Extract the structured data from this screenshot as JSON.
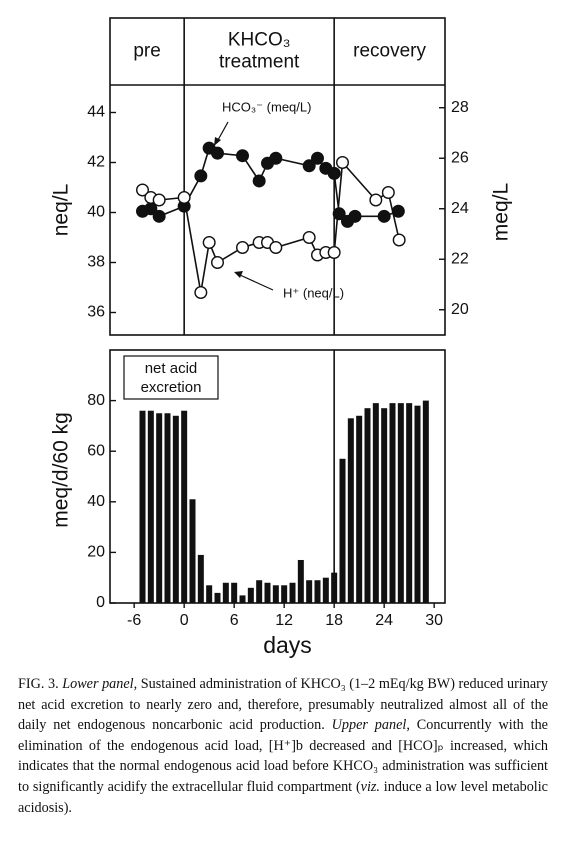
{
  "chart_data": [
    {
      "type": "line",
      "phases": [
        {
          "lines": [
            "pre"
          ]
        },
        {
          "lines": [
            "KHCO₃",
            "treatment"
          ]
        },
        {
          "lines": [
            "recovery"
          ]
        }
      ],
      "phase_boundaries": [
        0,
        18
      ],
      "ylabel": "neq/L",
      "y2label": "meq/L",
      "xlim": [
        -8.9,
        31.3
      ],
      "ylim": [
        35.1,
        45.1
      ],
      "yticks": [
        36,
        38,
        40,
        42,
        44
      ],
      "y2lim": [
        19,
        28.9
      ],
      "y2ticks": [
        20,
        22,
        24,
        26,
        28
      ],
      "series": [
        {
          "name": "HCO₃⁻ (meq/L)",
          "axis": "y2",
          "marker": "filled",
          "color": "#111111",
          "x": [
            -5,
            -4,
            -3,
            0,
            2,
            3,
            4,
            7,
            9,
            10,
            11,
            15,
            16,
            17,
            18,
            18.6,
            19.6,
            20.5,
            24,
            25.7
          ],
          "values": [
            23.9,
            24.0,
            23.7,
            24.1,
            25.3,
            26.4,
            26.2,
            26.1,
            25.1,
            25.8,
            26.0,
            25.7,
            26.0,
            25.6,
            25.4,
            23.8,
            23.5,
            23.7,
            23.7,
            23.9
          ]
        },
        {
          "name": "H⁺ (neq/L)",
          "marker": "open",
          "color": "#111111",
          "x": [
            -5,
            -4,
            -3,
            0,
            2,
            3,
            4,
            7,
            9,
            10,
            11,
            15,
            16,
            17,
            18,
            19,
            23,
            24.5,
            25.8
          ],
          "values": [
            40.9,
            40.6,
            40.5,
            40.6,
            36.8,
            38.8,
            38.0,
            38.6,
            38.8,
            38.8,
            38.6,
            39.0,
            38.3,
            38.4,
            38.4,
            42.0,
            40.5,
            40.8,
            38.9
          ]
        }
      ]
    },
    {
      "type": "bar",
      "annotation": [
        "net acid",
        "excretion"
      ],
      "xlabel": "days",
      "ylabel": "meq/d/60 kg",
      "phase_boundaries": [
        18
      ],
      "xlim": [
        -8.9,
        31.3
      ],
      "xticks": [
        -6,
        0,
        6,
        12,
        18,
        24,
        30
      ],
      "ylim": [
        0,
        100
      ],
      "yticks": [
        0,
        20,
        40,
        60,
        80
      ],
      "color": "#111111",
      "x": [
        -5,
        -4,
        -3,
        -2,
        -1,
        0,
        1,
        2,
        3,
        4,
        5,
        6,
        7,
        8,
        9,
        10,
        11,
        12,
        13,
        14,
        15,
        16,
        17,
        18,
        19,
        20,
        21,
        22,
        23,
        24,
        25,
        26,
        27,
        28,
        29
      ],
      "values": [
        76,
        76,
        75,
        75,
        74,
        76,
        41,
        19,
        7,
        4,
        8,
        8,
        3,
        6,
        9,
        8,
        7,
        7,
        8,
        17,
        9,
        9,
        10,
        12,
        57,
        73,
        74,
        77,
        79,
        77,
        79,
        79,
        79,
        78,
        80
      ]
    }
  ],
  "caption": [
    {
      "text": "FIG. 3. "
    },
    {
      "text": "Lower panel",
      "italic": true
    },
    {
      "text": ", Sustained administration of KHCO₃ (1–2 mEq/kg BW) reduced urinary net acid excretion to nearly zero and, therefore, presumably neutralized almost all of the daily net endogenous noncarbonic acid production. "
    },
    {
      "text": "Upper panel",
      "italic": true
    },
    {
      "text": ", Concurrently with the elimination of the endogenous acid load, [H⁺]b decreased and [HCO]ₚ increased, which indicates that the normal endogenous acid load before KHCO₃ administration was sufficient to significantly acidify the extracellular fluid compartment ("
    },
    {
      "text": "viz.",
      "italic": true
    },
    {
      "text": " induce a low level metabolic acidosis)."
    }
  ]
}
